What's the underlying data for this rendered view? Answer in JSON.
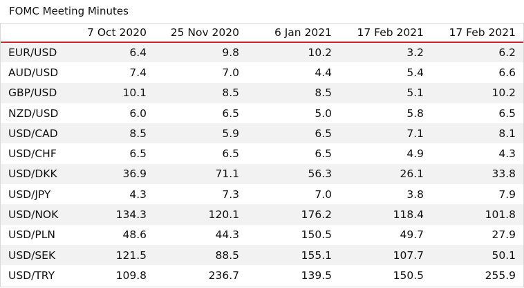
{
  "title": "FOMC Meeting Minutes",
  "columns": [
    "7 Oct 2020",
    "25 Nov 2020",
    "6 Jan 2021",
    "17 Feb 2021",
    "17 Feb 2021"
  ],
  "rows": [
    {
      "pair": "EUR/USD",
      "values": [
        "6.4",
        "9.8",
        "10.2",
        "3.2",
        "6.2"
      ]
    },
    {
      "pair": "AUD/USD",
      "values": [
        "7.4",
        "7.0",
        "4.4",
        "5.4",
        "6.6"
      ]
    },
    {
      "pair": "GBP/USD",
      "values": [
        "10.1",
        "8.5",
        "8.5",
        "5.1",
        "10.2"
      ]
    },
    {
      "pair": "NZD/USD",
      "values": [
        "6.0",
        "6.5",
        "5.0",
        "5.8",
        "6.5"
      ]
    },
    {
      "pair": "USD/CAD",
      "values": [
        "8.5",
        "5.9",
        "6.5",
        "7.1",
        "8.1"
      ]
    },
    {
      "pair": "USD/CHF",
      "values": [
        "6.5",
        "6.5",
        "6.5",
        "4.9",
        "4.3"
      ]
    },
    {
      "pair": "USD/DKK",
      "values": [
        "36.9",
        "71.1",
        "56.3",
        "26.1",
        "33.8"
      ]
    },
    {
      "pair": "USD/JPY",
      "values": [
        "4.3",
        "7.3",
        "7.0",
        "3.8",
        "7.9"
      ]
    },
    {
      "pair": "USD/NOK",
      "values": [
        "134.3",
        "120.1",
        "176.2",
        "118.4",
        "101.8"
      ]
    },
    {
      "pair": "USD/PLN",
      "values": [
        "48.6",
        "44.3",
        "150.5",
        "49.7",
        "27.9"
      ]
    },
    {
      "pair": "USD/SEK",
      "values": [
        "121.5",
        "88.5",
        "155.1",
        "107.7",
        "50.1"
      ]
    },
    {
      "pair": "USD/TRY",
      "values": [
        "109.8",
        "236.7",
        "139.5",
        "150.5",
        "255.9"
      ]
    }
  ],
  "colors": {
    "header_rule": "#c9252b",
    "stripe": "#f2f2f2",
    "border": "#d9d9d9",
    "text": "#111111"
  }
}
